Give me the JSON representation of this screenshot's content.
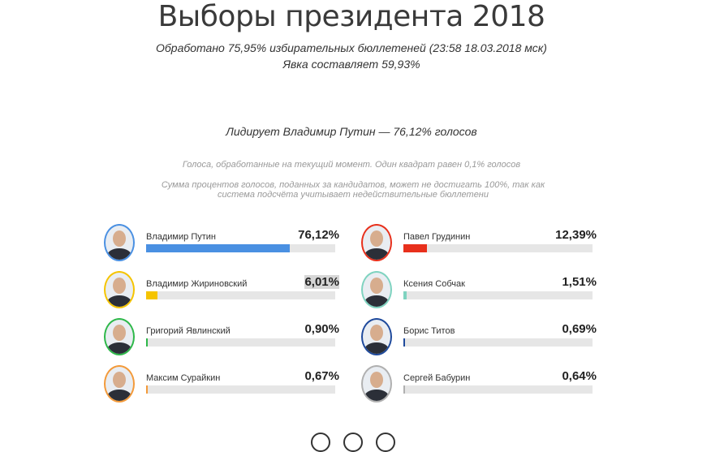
{
  "title": "Выборы президента 2018",
  "processed": "Обработано 75,95% избирательных бюллетеней (23:58 18.03.2018 мск)",
  "turnout": "Явка составляет 59,93%",
  "leader": "Лидирует Владимир Путин — 76,12% голосов",
  "note1": "Голоса, обработанные на текущий момент. Один квадрат равен 0,1% голосов",
  "note2": "Сумма процентов голосов, поданных за кандидатов, может не достигать 100%, так как система подсчёта учитывает недействительные бюллетени",
  "chart_data": {
    "type": "bar",
    "title": "",
    "ylim": [
      0,
      100
    ],
    "categories": [
      "Владимир Путин",
      "Павел Грудинин",
      "Владимир Жириновский",
      "Ксения Собчак",
      "Григорий Явлинский",
      "Борис Титов",
      "Максим Сурайкин",
      "Сергей Бабурин"
    ],
    "values": [
      76.12,
      12.39,
      6.01,
      1.51,
      0.9,
      0.69,
      0.67,
      0.64
    ],
    "labels": [
      "76,12%",
      "12,39%",
      "6,01%",
      "1,51%",
      "0,90%",
      "0,69%",
      "0,67%",
      "0,64%"
    ],
    "colors": [
      "#4a90e2",
      "#e8301c",
      "#f5c400",
      "#7fd3c0",
      "#2eb84a",
      "#1f4a9c",
      "#f39a3a",
      "#b0b0b0"
    ],
    "avatar_colors": [
      "#4a90e2",
      "#e8301c",
      "#f5c400",
      "#7fd3c0",
      "#2eb84a",
      "#1f4a9c",
      "#f39a3a",
      "#b0b0b0"
    ]
  }
}
